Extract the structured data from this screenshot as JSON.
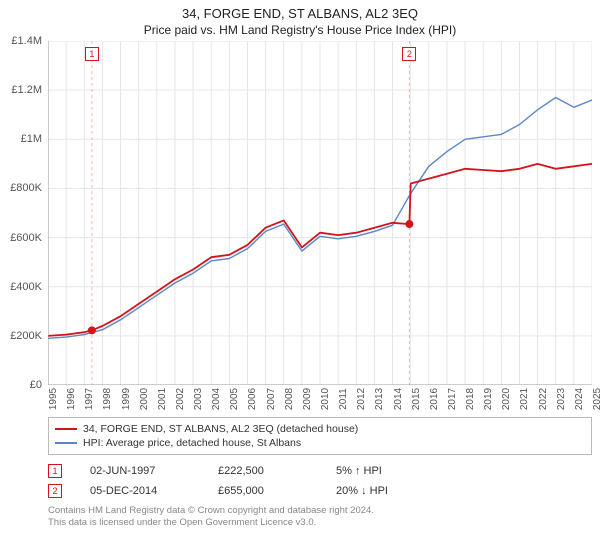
{
  "header": {
    "title": "34, FORGE END, ST ALBANS, AL2 3EQ",
    "subtitle": "Price paid vs. HM Land Registry's House Price Index (HPI)"
  },
  "chart": {
    "type": "line",
    "background_color": "#ffffff",
    "grid_color": "#e6e6e6",
    "axis_color": "#9a9a9a",
    "x_years": [
      1995,
      1996,
      1997,
      1998,
      1999,
      2000,
      2001,
      2002,
      2003,
      2004,
      2005,
      2006,
      2007,
      2008,
      2009,
      2010,
      2011,
      2012,
      2013,
      2014,
      2015,
      2016,
      2017,
      2018,
      2019,
      2020,
      2021,
      2022,
      2023,
      2024,
      2025
    ],
    "ylim": [
      0,
      1400000
    ],
    "ytick_step": 200000,
    "ytick_labels": [
      "£0",
      "£200K",
      "£400K",
      "£600K",
      "£800K",
      "£1M",
      "£1.2M",
      "£1.4M"
    ],
    "label_fontsize": 11,
    "tick_fontsize": 10,
    "series": [
      {
        "name": "price_paid",
        "color": "#d4131b",
        "line_width": 1.8,
        "x": [
          1995,
          1996,
          1997,
          1997.42,
          1998,
          1999,
          2000,
          2001,
          2002,
          2003,
          2004,
          2005,
          2006,
          2007,
          2008,
          2009,
          2010,
          2011,
          2012,
          2013,
          2014,
          2014.93,
          2015,
          2016,
          2017,
          2018,
          2019,
          2020,
          2021,
          2022,
          2023,
          2024,
          2025
        ],
        "y": [
          200000,
          205000,
          215000,
          222500,
          240000,
          280000,
          330000,
          380000,
          430000,
          470000,
          520000,
          530000,
          570000,
          640000,
          670000,
          560000,
          620000,
          610000,
          620000,
          640000,
          660000,
          655000,
          820000,
          840000,
          860000,
          880000,
          875000,
          870000,
          880000,
          900000,
          880000,
          890000,
          900000
        ]
      },
      {
        "name": "hpi",
        "color": "#5b87c7",
        "line_width": 1.4,
        "x": [
          1995,
          1996,
          1997,
          1998,
          1999,
          2000,
          2001,
          2002,
          2003,
          2004,
          2005,
          2006,
          2007,
          2008,
          2009,
          2010,
          2011,
          2012,
          2013,
          2014,
          2015,
          2016,
          2017,
          2018,
          2019,
          2020,
          2021,
          2022,
          2023,
          2024,
          2025
        ],
        "y": [
          190000,
          195000,
          205000,
          225000,
          265000,
          315000,
          365000,
          415000,
          455000,
          505000,
          515000,
          555000,
          625000,
          655000,
          545000,
          605000,
          595000,
          605000,
          625000,
          650000,
          780000,
          890000,
          950000,
          1000000,
          1010000,
          1020000,
          1060000,
          1120000,
          1170000,
          1130000,
          1160000
        ]
      }
    ],
    "vertical_markers": [
      {
        "label": "1",
        "x": 1997.42,
        "line_color": "#f6b4b6",
        "box_border": "#d4131b",
        "box_fill": "#ffffff",
        "text_color": "#d4131b"
      },
      {
        "label": "2",
        "x": 2014.93,
        "line_color": "#f6b4b6",
        "box_border": "#d4131b",
        "box_fill": "#ffffff",
        "text_color": "#d4131b"
      }
    ],
    "sale_points": [
      {
        "x": 1997.42,
        "y": 222500,
        "color": "#d4131b"
      },
      {
        "x": 2014.93,
        "y": 655000,
        "color": "#d4131b"
      }
    ]
  },
  "legend": {
    "items": [
      {
        "label": "34, FORGE END, ST ALBANS, AL2 3EQ (detached house)",
        "color": "#d4131b"
      },
      {
        "label": "HPI: Average price, detached house, St Albans",
        "color": "#5b87c7"
      }
    ]
  },
  "sales": [
    {
      "marker": "1",
      "date": "02-JUN-1997",
      "price": "£222,500",
      "delta": "5% ↑ HPI",
      "marker_border": "#d4131b",
      "marker_text": "#d4131b"
    },
    {
      "marker": "2",
      "date": "05-DEC-2014",
      "price": "£655,000",
      "delta": "20% ↓ HPI",
      "marker_border": "#d4131b",
      "marker_text": "#d4131b"
    }
  ],
  "attribution": {
    "line1": "Contains HM Land Registry data © Crown copyright and database right 2024.",
    "line2": "This data is licensed under the Open Government Licence v3.0."
  }
}
